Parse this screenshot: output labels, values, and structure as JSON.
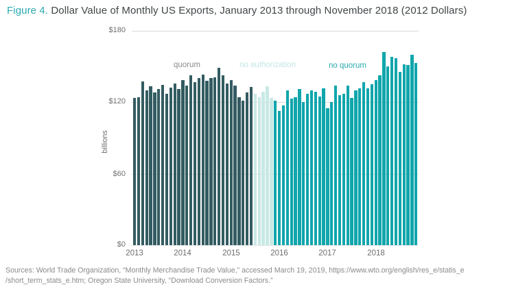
{
  "figure": {
    "label": "Figure 4.",
    "title": " Dollar Value of Monthly US Exports, January 2013 through November 2018 (2012 Dollars)"
  },
  "chart_data": {
    "type": "bar",
    "title": "Dollar Value of Monthly US Exports, January 2013 through November 2018 (2012 Dollars)",
    "ylabel": "billions",
    "unit": "billions of 2012 dollars",
    "ylim": [
      0,
      180
    ],
    "y_ticks": [
      "$180",
      "$120",
      "$60",
      "$0"
    ],
    "x_year_labels": [
      "2013",
      "2014",
      "2015",
      "2016",
      "2017",
      "2018"
    ],
    "grid": "horizontal",
    "legend_position": "inline-above-bars",
    "legend": [
      {
        "label": "quorum",
        "text_color": "#8c8c8c"
      },
      {
        "label": "no authorization",
        "text_color": "#c3e7e4"
      },
      {
        "label": "no quorum",
        "text_color": "#2aa9af"
      }
    ],
    "segment_colors": {
      "quorum": "#335c61",
      "no authorization": "#c9e9e6",
      "no quorum": "#10a6ac"
    },
    "series": [
      {
        "name": "quorum",
        "months": "Jan 2013 - Jun 2015",
        "values": [
          123.5,
          124.5,
          137.5,
          130,
          133.5,
          128,
          131,
          134.5,
          127,
          132.5,
          135.5,
          131,
          138.5,
          134,
          142.5,
          137,
          140.5,
          143,
          138,
          140.5,
          141,
          149,
          142.5,
          136,
          138.5,
          134,
          124.5,
          121.5,
          128,
          133
        ]
      },
      {
        "name": "no authorization",
        "months": "Jul 2015 - Nov 2015",
        "values": [
          127,
          124.5,
          129,
          133.5,
          123.5
        ]
      },
      {
        "name": "no quorum",
        "months": "Dec 2015 - Nov 2018",
        "values": [
          121.5,
          112.5,
          117.5,
          130,
          123,
          124.5,
          131,
          120.5,
          127,
          130,
          129,
          125,
          132,
          115,
          120.5,
          134,
          126,
          127,
          134,
          123.5,
          130,
          132,
          137,
          132,
          135,
          138.5,
          142.5,
          162,
          150,
          158,
          157,
          145.5,
          152,
          151.5,
          160,
          153
        ]
      }
    ]
  },
  "sources": {
    "line1": "Sources: World Trade Organization, “Monthly Merchandise Trade Value,” accessed March 19, 2019, https://www.wto.org/english/res_e/statis_e",
    "line2": "/short_term_stats_e.htm; Oregon State University, “Download Conversion Factors.”"
  }
}
